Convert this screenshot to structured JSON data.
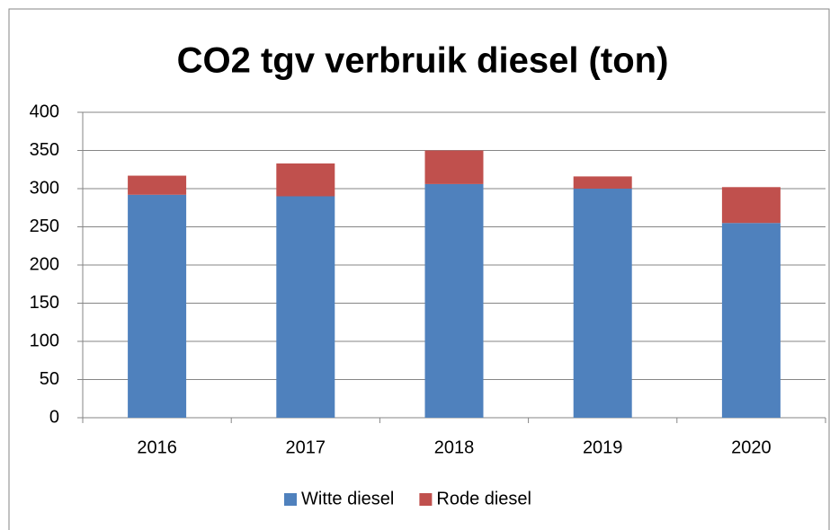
{
  "chart_data": {
    "type": "bar",
    "stacked": true,
    "title": "CO2 tgv verbruik diesel (ton)",
    "categories": [
      "2016",
      "2017",
      "2018",
      "2019",
      "2020"
    ],
    "series": [
      {
        "name": "Witte diesel",
        "color": "#4f81bd",
        "values": [
          292,
          290,
          306,
          300,
          255
        ]
      },
      {
        "name": "Rode diesel",
        "color": "#c0504d",
        "values": [
          25,
          43,
          44,
          16,
          47
        ]
      }
    ],
    "ylim": [
      0,
      400
    ],
    "yticks": [
      0,
      50,
      100,
      150,
      200,
      250,
      300,
      350,
      400
    ],
    "grid": true,
    "legend": "bottom"
  }
}
